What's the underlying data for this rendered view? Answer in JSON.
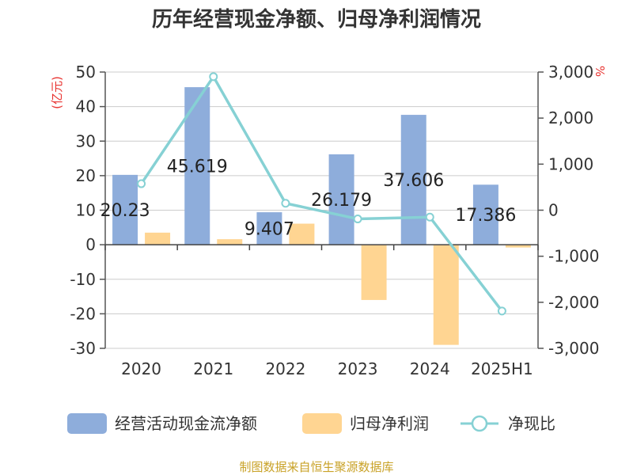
{
  "chart_data": {
    "type": "bar",
    "title": "历年经营现金净额、归母净利润情况",
    "categories": [
      "2020",
      "2021",
      "2022",
      "2023",
      "2024",
      "2025H1"
    ],
    "left_axis": {
      "unit_label": "(亿元)",
      "ylim": [
        -30,
        50
      ],
      "ticks": [
        "50",
        "40",
        "30",
        "20",
        "10",
        "0",
        "-10",
        "-20",
        "-30"
      ]
    },
    "right_axis": {
      "unit_label": "%",
      "ylim": [
        -3000,
        3000
      ],
      "ticks": [
        "3,000",
        "2,000",
        "1,000",
        "0",
        "-1,000",
        "-2,000",
        "-3,000"
      ]
    },
    "series": [
      {
        "name": "经营活动现金流净额",
        "kind": "bar",
        "axis": "left",
        "color": "#8eaddb",
        "values": [
          20.23,
          45.619,
          9.407,
          26.179,
          37.606,
          17.386
        ],
        "labels": [
          "20.23",
          "45.619",
          "9.407",
          "26.179",
          "37.606",
          "17.386"
        ]
      },
      {
        "name": "归母净利润",
        "kind": "bar",
        "axis": "left",
        "color": "#ffd592",
        "values": [
          3.5,
          1.6,
          6.1,
          -16.0,
          -29.0,
          -0.8
        ]
      },
      {
        "name": "净现比",
        "kind": "line",
        "axis": "right",
        "color": "#86d1d4",
        "values": [
          575,
          2900,
          150,
          -190,
          -150,
          -2190
        ]
      }
    ],
    "grid": true,
    "legend_position": "bottom"
  },
  "source": "制图数据来自恒生聚源数据库"
}
